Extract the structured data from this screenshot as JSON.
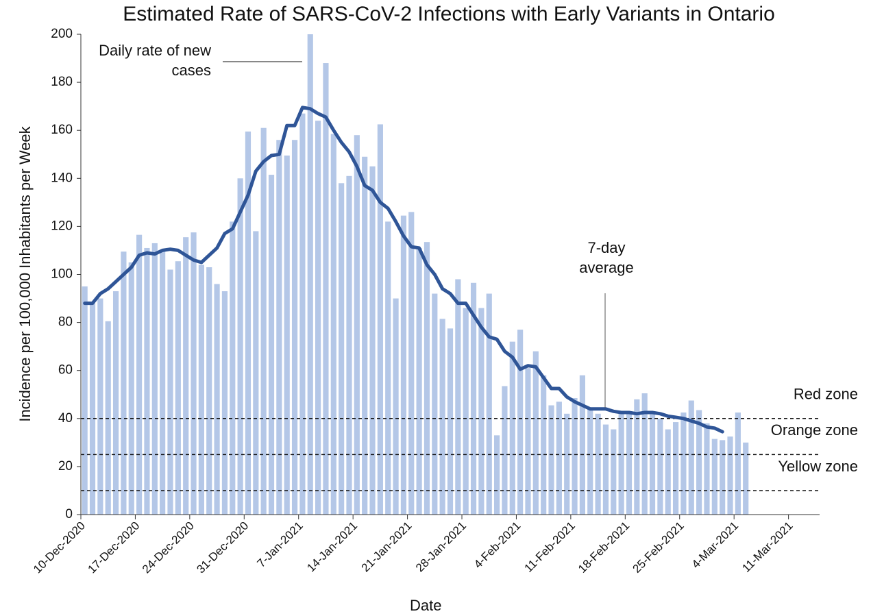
{
  "chart_data": {
    "type": "bar+line",
    "title": "Estimated Rate of SARS-CoV-2 Infections with Early Variants in Ontario",
    "x_label": "Date",
    "y_label": "Incidence per 100,000 Inhabitants per Week",
    "x_start": "2020-12-10",
    "series": [
      {
        "name": "Daily rate of new cases",
        "type": "bar",
        "color": "#b4c7e7",
        "values": [
          95,
          88,
          90,
          80.5,
          93,
          109.5,
          105,
          116.5,
          111,
          113,
          110,
          102,
          105.5,
          115.5,
          117.5,
          104,
          103,
          96,
          93,
          122,
          140,
          159.5,
          118,
          161,
          141.5,
          156,
          149.5,
          156,
          167,
          200,
          164,
          188,
          158.5,
          138,
          141,
          158,
          149,
          145,
          162.5,
          122,
          90,
          124.5,
          126,
          111,
          113.5,
          92,
          81.5,
          77.5,
          98,
          86,
          96.5,
          86,
          92,
          33,
          53.5,
          72,
          77,
          61,
          68,
          58,
          45.5,
          47,
          42,
          48.5,
          58,
          44,
          42,
          37.5,
          35.5,
          42,
          43,
          48,
          50.5,
          43,
          40,
          35.5,
          38.5,
          42.5,
          47.5,
          43.5,
          38,
          31.5,
          31,
          32.5,
          42.5,
          30
        ]
      },
      {
        "name": "7-day average",
        "type": "line",
        "color": "#2f5597",
        "values": [
          88,
          88,
          92,
          94,
          97,
          100,
          103,
          108,
          109,
          108.5,
          110,
          110.5,
          110,
          108,
          106,
          105,
          108,
          111,
          117,
          119,
          126,
          133,
          143,
          147,
          149.5,
          150,
          162,
          162,
          169.5,
          169,
          167,
          165.5,
          160,
          155,
          151,
          145,
          137,
          135,
          130,
          127.5,
          122,
          116,
          111.5,
          111,
          104,
          100,
          94,
          92,
          88,
          88,
          83,
          78,
          74,
          73,
          68,
          65.5,
          60.5,
          62,
          61.5,
          57,
          52.5,
          52.5,
          49,
          47,
          45.5,
          44,
          44,
          44,
          43,
          42.5,
          42.5,
          42,
          42.5,
          42.5,
          42,
          41,
          40.5,
          40,
          39,
          38,
          36.5,
          36,
          34.5,
          null,
          null,
          null
        ]
      }
    ],
    "thresholds": [
      40,
      25,
      10
    ],
    "zone_labels": [
      "Red zone",
      "Orange zone",
      "Yellow zone"
    ],
    "xlim": [
      "2020-12-10",
      "2021-03-15"
    ],
    "xticks": [
      {
        "value": "2020-12-10",
        "label": "10-Dec-2020"
      },
      {
        "value": "2020-12-17",
        "label": "17-Dec-2020"
      },
      {
        "value": "2020-12-24",
        "label": "24-Dec-2020"
      },
      {
        "value": "2020-12-31",
        "label": "31-Dec-2020"
      },
      {
        "value": "2021-01-07",
        "label": "7-Jan-2021"
      },
      {
        "value": "2021-01-14",
        "label": "14-Jan-2021"
      },
      {
        "value": "2021-01-21",
        "label": "21-Jan-2021"
      },
      {
        "value": "2021-01-28",
        "label": "28-Jan-2021"
      },
      {
        "value": "2021-02-04",
        "label": "4-Feb-2021"
      },
      {
        "value": "2021-02-11",
        "label": "11-Feb-2021"
      },
      {
        "value": "2021-02-18",
        "label": "18-Feb-2021"
      },
      {
        "value": "2021-02-25",
        "label": "25-Feb-2021"
      },
      {
        "value": "2021-03-04",
        "label": "4-Mar-2021"
      },
      {
        "value": "2021-03-11",
        "label": "11-Mar-2021"
      }
    ],
    "ylim": [
      0,
      200
    ],
    "yticks": [
      0,
      20,
      40,
      60,
      80,
      100,
      120,
      140,
      160,
      180,
      200
    ]
  }
}
